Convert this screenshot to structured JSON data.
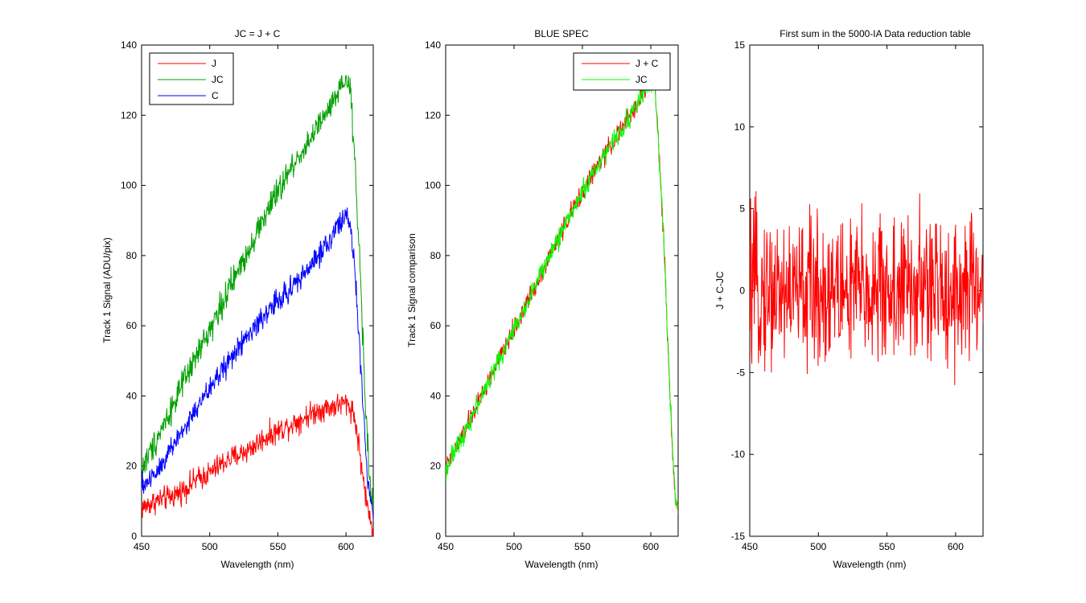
{
  "chart_data": [
    {
      "type": "line",
      "title": "JC = J + C",
      "xlabel": "Wavelength (nm)",
      "ylabel": "Track 1 Signal (ADU/pix)",
      "xlim": [
        450,
        620
      ],
      "ylim": [
        0,
        140
      ],
      "xticks": [
        450,
        500,
        550,
        600
      ],
      "yticks": [
        0,
        20,
        40,
        60,
        80,
        100,
        120,
        140
      ],
      "grid": false,
      "legend_position": "top-left",
      "series": [
        {
          "name": "J",
          "color": "#ff0000",
          "noise": 3.0,
          "x": [
            450,
            460,
            470,
            480,
            490,
            500,
            510,
            520,
            530,
            540,
            550,
            560,
            570,
            580,
            590,
            600,
            605,
            608,
            612,
            615,
            618,
            620
          ],
          "y": [
            8,
            10,
            11,
            13,
            16,
            18,
            21,
            23,
            25,
            28,
            30,
            32,
            34,
            36,
            37,
            38,
            36,
            30,
            18,
            10,
            4,
            2
          ]
        },
        {
          "name": "JC",
          "color": "#00a000",
          "noise": 3.5,
          "x": [
            450,
            460,
            470,
            480,
            490,
            500,
            510,
            520,
            530,
            540,
            550,
            560,
            570,
            580,
            590,
            600,
            603,
            606,
            610,
            614,
            618,
            620
          ],
          "y": [
            19,
            27,
            35,
            43,
            51,
            59,
            67,
            75,
            83,
            91,
            98,
            105,
            111,
            117,
            123,
            130,
            128,
            110,
            80,
            40,
            12,
            8
          ]
        },
        {
          "name": "C",
          "color": "#0000ff",
          "noise": 3.0,
          "x": [
            450,
            460,
            470,
            480,
            490,
            500,
            510,
            520,
            530,
            540,
            550,
            560,
            570,
            580,
            590,
            600,
            603,
            606,
            609,
            612,
            616,
            620
          ],
          "y": [
            14,
            18,
            24,
            30,
            36,
            42,
            48,
            53,
            58,
            63,
            67,
            71,
            75,
            80,
            86,
            92,
            88,
            78,
            60,
            40,
            15,
            6
          ]
        }
      ]
    },
    {
      "type": "line",
      "title": "BLUE SPEC",
      "xlabel": "Wavelength (nm)",
      "ylabel": "Track 1 Signal comparison",
      "xlim": [
        450,
        620
      ],
      "ylim": [
        0,
        140
      ],
      "xticks": [
        450,
        500,
        550,
        600
      ],
      "yticks": [
        0,
        20,
        40,
        60,
        80,
        100,
        120,
        140
      ],
      "grid": false,
      "legend_position": "top-right",
      "series": [
        {
          "name": "J + C",
          "color": "#ff0000",
          "noise": 2.5,
          "x": [
            450,
            460,
            470,
            480,
            490,
            500,
            510,
            520,
            530,
            540,
            550,
            560,
            570,
            580,
            590,
            600,
            603,
            606,
            610,
            614,
            618,
            620
          ],
          "y": [
            19,
            27,
            35,
            43,
            51,
            59,
            67,
            75,
            83,
            91,
            98,
            105,
            111,
            117,
            123,
            130,
            128,
            110,
            80,
            40,
            10,
            8
          ]
        },
        {
          "name": "JC",
          "color": "#00ff00",
          "noise": 2.5,
          "x": [
            450,
            460,
            470,
            480,
            490,
            500,
            510,
            520,
            530,
            540,
            550,
            560,
            570,
            580,
            590,
            600,
            603,
            606,
            610,
            614,
            618,
            620
          ],
          "y": [
            19,
            27,
            35,
            43,
            51,
            59,
            67,
            75,
            83,
            91,
            98,
            105,
            111,
            117,
            123,
            130,
            128,
            110,
            80,
            40,
            10,
            8
          ]
        }
      ]
    },
    {
      "type": "line",
      "title": "First sum in the 5000-IA Data reduction table",
      "xlabel": "Wavelength (nm)",
      "ylabel": "J + C-JC",
      "xlim": [
        450,
        620
      ],
      "ylim": [
        -15,
        15
      ],
      "xticks": [
        450,
        500,
        550,
        600
      ],
      "yticks": [
        -15,
        -10,
        -5,
        0,
        5,
        10,
        15
      ],
      "grid": false,
      "series": [
        {
          "color": "#ff0000",
          "noise": 4.0,
          "x": [
            450,
            620
          ],
          "y": [
            0,
            0
          ]
        }
      ]
    }
  ]
}
